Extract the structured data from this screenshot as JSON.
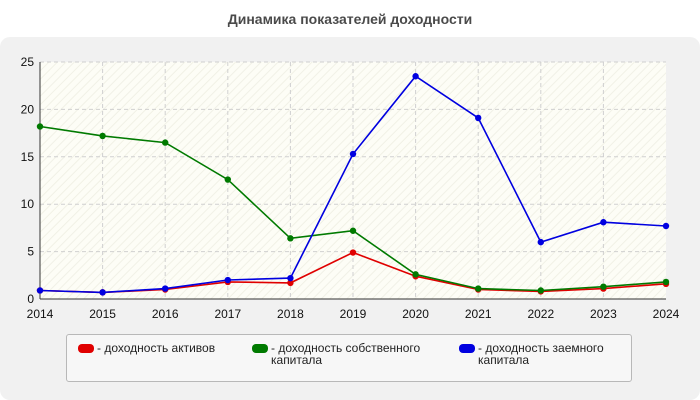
{
  "colors": {
    "assets": "#e00000",
    "equity": "#007a00",
    "borrowed": "#0000e0"
  },
  "chart_data": {
    "type": "line",
    "title": "Динамика показателей доходности",
    "xlabel": "",
    "ylabel": "",
    "x": [
      "2014",
      "2015",
      "2016",
      "2017",
      "2018",
      "2019",
      "2020",
      "2021",
      "2022",
      "2023",
      "2024"
    ],
    "ylim": [
      0,
      25
    ],
    "yticks": [
      "0",
      "5",
      "10",
      "15",
      "20",
      "25"
    ],
    "grid": true,
    "legend_position": "bottom",
    "series": [
      {
        "key": "assets",
        "name": "- доходность активов",
        "values": [
          0.9,
          0.7,
          1.0,
          1.8,
          1.7,
          4.9,
          2.4,
          1.0,
          0.8,
          1.1,
          1.6
        ]
      },
      {
        "key": "equity",
        "name": "- доходность собственного капитала",
        "values": [
          18.2,
          17.2,
          16.5,
          12.6,
          6.4,
          7.2,
          2.6,
          1.1,
          0.9,
          1.3,
          1.8
        ]
      },
      {
        "key": "borrowed",
        "name": "- доходность заемного капитала",
        "values": [
          0.9,
          0.7,
          1.1,
          2.0,
          2.2,
          15.3,
          23.5,
          19.1,
          6.0,
          8.1,
          7.7
        ]
      }
    ]
  }
}
